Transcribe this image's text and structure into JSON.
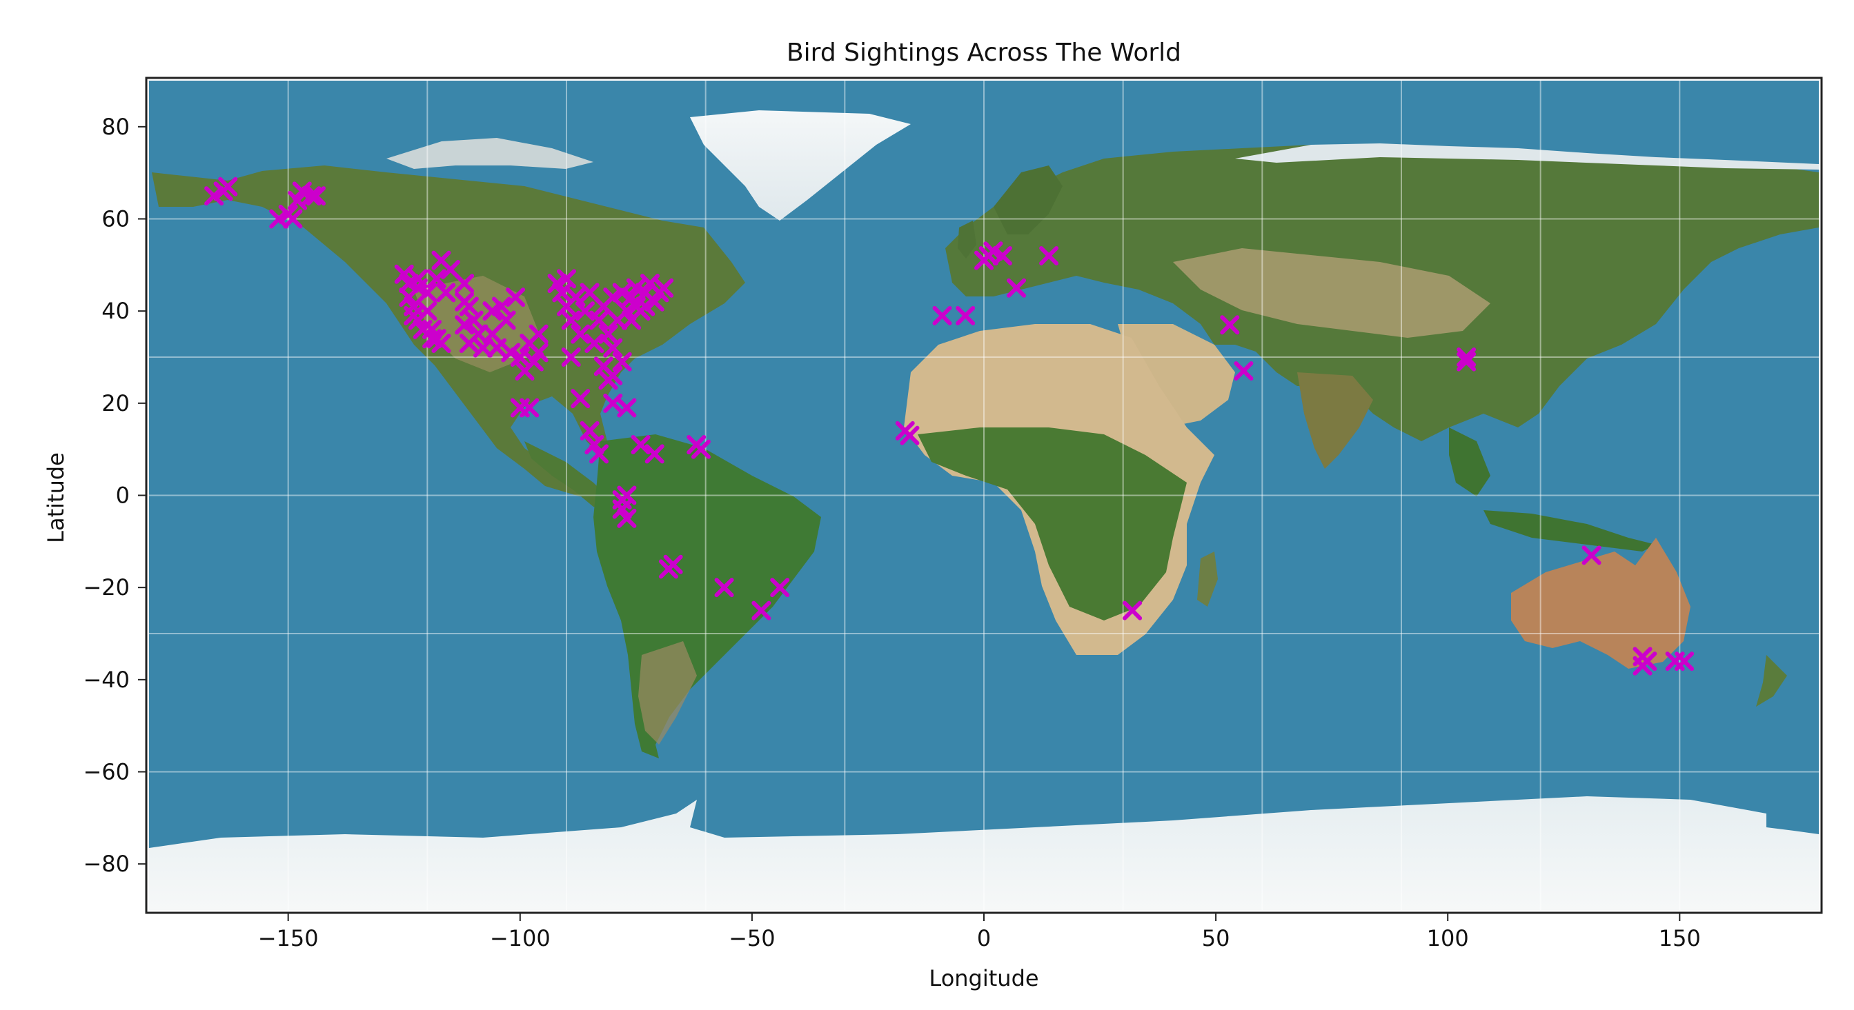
{
  "chart_data": {
    "type": "scatter",
    "title": "Bird Sightings Across The World",
    "xlabel": "Longitude",
    "ylabel": "Latitude",
    "xlim": [
      -180,
      180
    ],
    "ylim": [
      -90,
      90
    ],
    "xticks": [
      -150,
      -100,
      -50,
      0,
      50,
      100,
      150
    ],
    "xtick_labels": [
      "−150",
      "−100",
      "−50",
      "0",
      "50",
      "100",
      "150"
    ],
    "yticks": [
      80,
      60,
      40,
      20,
      0,
      -20,
      -40,
      -60,
      -80
    ],
    "ytick_labels": [
      "80",
      "60",
      "40",
      "20",
      "0",
      "−20",
      "−40",
      "−60",
      "−80"
    ],
    "background": "world satellite image (equirectangular), ocean #3a86aa",
    "grid": true,
    "marker": "x",
    "marker_color": "#cc00cc",
    "points": [
      [
        -166,
        65
      ],
      [
        -164,
        66
      ],
      [
        -163,
        67
      ],
      [
        -152,
        60
      ],
      [
        -150,
        61
      ],
      [
        -149,
        60
      ],
      [
        -148,
        64
      ],
      [
        -147,
        66
      ],
      [
        -145,
        65
      ],
      [
        -144,
        65
      ],
      [
        -125,
        48
      ],
      [
        -124,
        46
      ],
      [
        -124,
        43
      ],
      [
        -123,
        41
      ],
      [
        -123,
        39
      ],
      [
        -122,
        47
      ],
      [
        -122,
        45
      ],
      [
        -122,
        38
      ],
      [
        -121,
        36
      ],
      [
        -120,
        44
      ],
      [
        -120,
        40
      ],
      [
        -119,
        36
      ],
      [
        -119,
        34
      ],
      [
        -118,
        47
      ],
      [
        -118,
        34
      ],
      [
        -117,
        51
      ],
      [
        -117,
        33
      ],
      [
        -116,
        44
      ],
      [
        -115,
        49
      ],
      [
        -112,
        46
      ],
      [
        -112,
        42
      ],
      [
        -112,
        37
      ],
      [
        -111,
        41
      ],
      [
        -111,
        33
      ],
      [
        -110,
        38
      ],
      [
        -109,
        35
      ],
      [
        -108,
        32
      ],
      [
        -106,
        40
      ],
      [
        -106,
        35
      ],
      [
        -105,
        32
      ],
      [
        -104,
        41
      ],
      [
        -103,
        38
      ],
      [
        -102,
        31
      ],
      [
        -101,
        43
      ],
      [
        -100,
        30
      ],
      [
        -99,
        27
      ],
      [
        -98,
        33
      ],
      [
        -97,
        29
      ],
      [
        -96,
        31
      ],
      [
        -96,
        35
      ],
      [
        -100,
        19
      ],
      [
        -98,
        19
      ],
      [
        -92,
        46
      ],
      [
        -91,
        44
      ],
      [
        -90,
        41
      ],
      [
        -90,
        47
      ],
      [
        -89,
        38
      ],
      [
        -89,
        30
      ],
      [
        -88,
        43
      ],
      [
        -87,
        35
      ],
      [
        -87,
        21
      ],
      [
        -86,
        40
      ],
      [
        -85,
        44
      ],
      [
        -85,
        14
      ],
      [
        -84,
        33
      ],
      [
        -84,
        11
      ],
      [
        -83,
        38
      ],
      [
        -83,
        9
      ],
      [
        -82,
        41
      ],
      [
        -82,
        28
      ],
      [
        -81,
        25
      ],
      [
        -81,
        35
      ],
      [
        -80,
        43
      ],
      [
        -80,
        32
      ],
      [
        -80,
        26
      ],
      [
        -80,
        20
      ],
      [
        -79,
        38
      ],
      [
        -78,
        44
      ],
      [
        -78,
        29
      ],
      [
        -78,
        -1
      ],
      [
        -78,
        -3
      ],
      [
        -77,
        40
      ],
      [
        -77,
        -5
      ],
      [
        -77,
        0
      ],
      [
        -77,
        19
      ],
      [
        -76,
        43
      ],
      [
        -76,
        38
      ],
      [
        -75,
        45
      ],
      [
        -75,
        41
      ],
      [
        -74,
        40
      ],
      [
        -74,
        11
      ],
      [
        -73,
        44
      ],
      [
        -73,
        41
      ],
      [
        -72,
        46
      ],
      [
        -71,
        42
      ],
      [
        -71,
        9
      ],
      [
        -70,
        44
      ],
      [
        -69,
        45
      ],
      [
        -68,
        -16
      ],
      [
        -67,
        -15
      ],
      [
        -62,
        11
      ],
      [
        -61,
        10
      ],
      [
        -56,
        -20
      ],
      [
        -48,
        -25
      ],
      [
        -44,
        -20
      ],
      [
        -17,
        14
      ],
      [
        -16,
        13
      ],
      [
        -9,
        39
      ],
      [
        -4,
        39
      ],
      [
        0,
        51
      ],
      [
        1,
        52
      ],
      [
        2,
        53
      ],
      [
        4,
        52
      ],
      [
        7,
        45
      ],
      [
        14,
        52
      ],
      [
        32,
        -25
      ],
      [
        53,
        37
      ],
      [
        56,
        27
      ],
      [
        104,
        30
      ],
      [
        104,
        29
      ],
      [
        131,
        -13
      ],
      [
        142,
        -35
      ],
      [
        142,
        -37
      ],
      [
        143,
        -36
      ],
      [
        149,
        -36
      ],
      [
        151,
        -36
      ]
    ]
  }
}
